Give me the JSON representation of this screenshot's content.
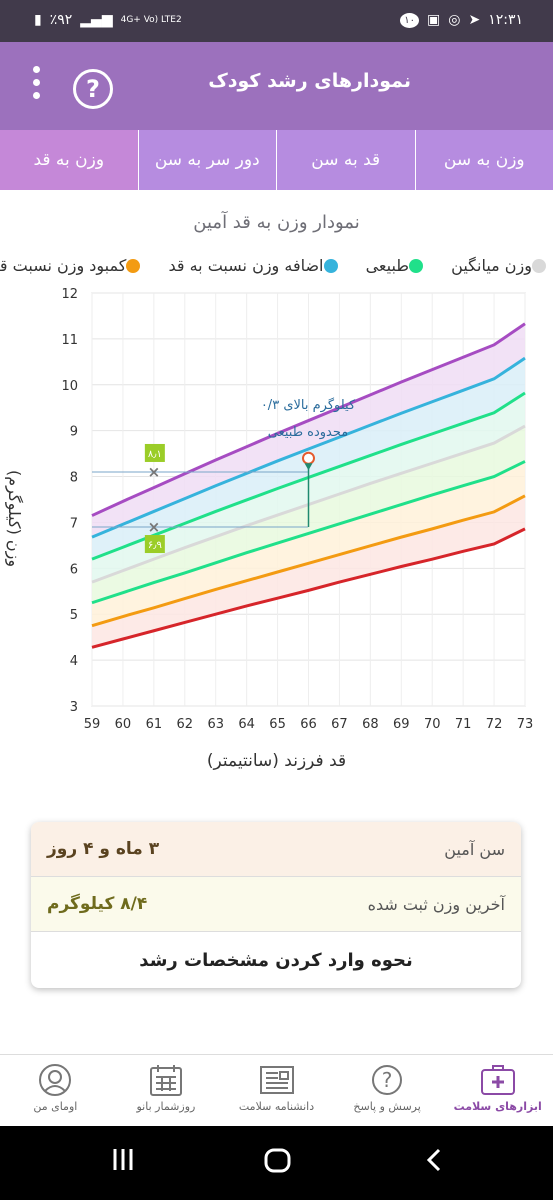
{
  "status": {
    "time": "۱۲:۳۱",
    "battery": "٪۹۲",
    "network": "4G+ Vo) LTE2",
    "notification_count": "۱۰"
  },
  "appbar": {
    "title": "نمودارهای رشد کودک",
    "help_icon": "help-icon",
    "menu_icon": "more-vert-icon"
  },
  "tabs": [
    {
      "label": "وزن به قد",
      "active": true
    },
    {
      "label": "دور سر به سن",
      "active": false
    },
    {
      "label": "قد به سن",
      "active": false
    },
    {
      "label": "وزن به سن",
      "active": false
    }
  ],
  "chart_title": "نمودار وزن به قد آمین",
  "legend": [
    {
      "label": "وزن میانگین",
      "color": "#d9d9d9"
    },
    {
      "label": "طبیعی",
      "color": "#20e08a"
    },
    {
      "label": "اضافه وزن نسبت به قد",
      "color": "#36b3dc"
    },
    {
      "label": "کمبود وزن نسبت قد",
      "color": "#f39b12"
    }
  ],
  "chart_data": {
    "type": "line",
    "title": "نمودار وزن به قد آمین",
    "xlabel": "قد فرزند (سانتیمتر)",
    "ylabel": "وزن (کیلوگرم)",
    "x": [
      59,
      60,
      61,
      62,
      63,
      64,
      65,
      66,
      67,
      68,
      69,
      70,
      71,
      72,
      73
    ],
    "xlim": [
      59,
      73
    ],
    "ylim": [
      3,
      12
    ],
    "x_ticks": [
      "59",
      "60",
      "61",
      "62",
      "63",
      "64",
      "65",
      "66",
      "67",
      "68",
      "69",
      "70",
      "71",
      "72",
      "73"
    ],
    "y_ticks": [
      "3",
      "4",
      "5",
      "6",
      "7",
      "8",
      "9",
      "10",
      "11",
      "12"
    ],
    "series": [
      {
        "color": "#d6252a",
        "values": [
          4.28,
          4.46,
          4.64,
          4.82,
          5.0,
          5.18,
          5.35,
          5.52,
          5.7,
          5.87,
          6.04,
          6.2,
          6.37,
          6.53,
          6.86
        ]
      },
      {
        "color": "#f39b12",
        "values": [
          4.75,
          4.95,
          5.14,
          5.34,
          5.54,
          5.73,
          5.92,
          6.11,
          6.3,
          6.49,
          6.68,
          6.86,
          7.05,
          7.23,
          7.58
        ]
      },
      {
        "color": "#20e08a",
        "values": [
          5.25,
          5.47,
          5.69,
          5.9,
          6.12,
          6.34,
          6.55,
          6.76,
          6.97,
          7.18,
          7.39,
          7.6,
          7.8,
          8.0,
          8.33
        ]
      },
      {
        "color": "#d9d9d9",
        "values": [
          5.7,
          5.95,
          6.2,
          6.45,
          6.69,
          6.93,
          7.16,
          7.39,
          7.62,
          7.85,
          8.07,
          8.29,
          8.51,
          8.73,
          9.1
        ]
      },
      {
        "color": "#20e08a",
        "values": [
          6.2,
          6.46,
          6.72,
          6.98,
          7.24,
          7.49,
          7.74,
          7.98,
          8.22,
          8.46,
          8.7,
          8.93,
          9.16,
          9.39,
          9.82
        ]
      },
      {
        "color": "#36b3dc",
        "values": [
          6.68,
          6.96,
          7.24,
          7.52,
          7.8,
          8.07,
          8.34,
          8.6,
          8.86,
          9.12,
          9.38,
          9.63,
          9.88,
          10.13,
          10.58
        ]
      },
      {
        "color": "#a64cc2",
        "values": [
          7.15,
          7.46,
          7.76,
          8.06,
          8.36,
          8.65,
          8.94,
          9.22,
          9.5,
          9.78,
          10.06,
          10.33,
          10.6,
          10.87,
          11.33
        ]
      }
    ],
    "fills": [
      {
        "color": "#fde6e3"
      },
      {
        "color": "#fff1d9"
      },
      {
        "color": "#e8f9de"
      },
      {
        "color": "#e2f8ee"
      },
      {
        "color": "#d9eef8"
      },
      {
        "color": "#f0ddf4"
      }
    ],
    "points": [
      {
        "x": 61,
        "y": 8.1,
        "label": "۸٫۱"
      },
      {
        "x": 61,
        "y": 6.9,
        "label": "۶٫۹"
      }
    ],
    "current_point": {
      "x": 66,
      "y": 8.4
    },
    "annotation": [
      "۰/۳ کیلوگرم بالای",
      "محدوده طبیعی"
    ]
  },
  "card": {
    "age_label": "سن آمین",
    "age_value": "۳ ماه و ۴ روز",
    "weight_label": "آخرین وزن ثبت شده",
    "weight_value": "۸/۴ کیلوگرم",
    "link": "نحوه وارد کردن مشخصات رشد"
  },
  "bottom_nav": [
    {
      "label": "ابزارهای سلامت",
      "icon": "health-kit-icon",
      "active": true
    },
    {
      "label": "پرسش و پاسخ",
      "icon": "question-icon",
      "active": false
    },
    {
      "label": "دانشنامه سلامت",
      "icon": "newspaper-icon",
      "active": false
    },
    {
      "label": "روزشمار بانو",
      "icon": "calendar-icon",
      "active": false
    },
    {
      "label": "اومای من",
      "icon": "user-icon",
      "active": false
    }
  ]
}
